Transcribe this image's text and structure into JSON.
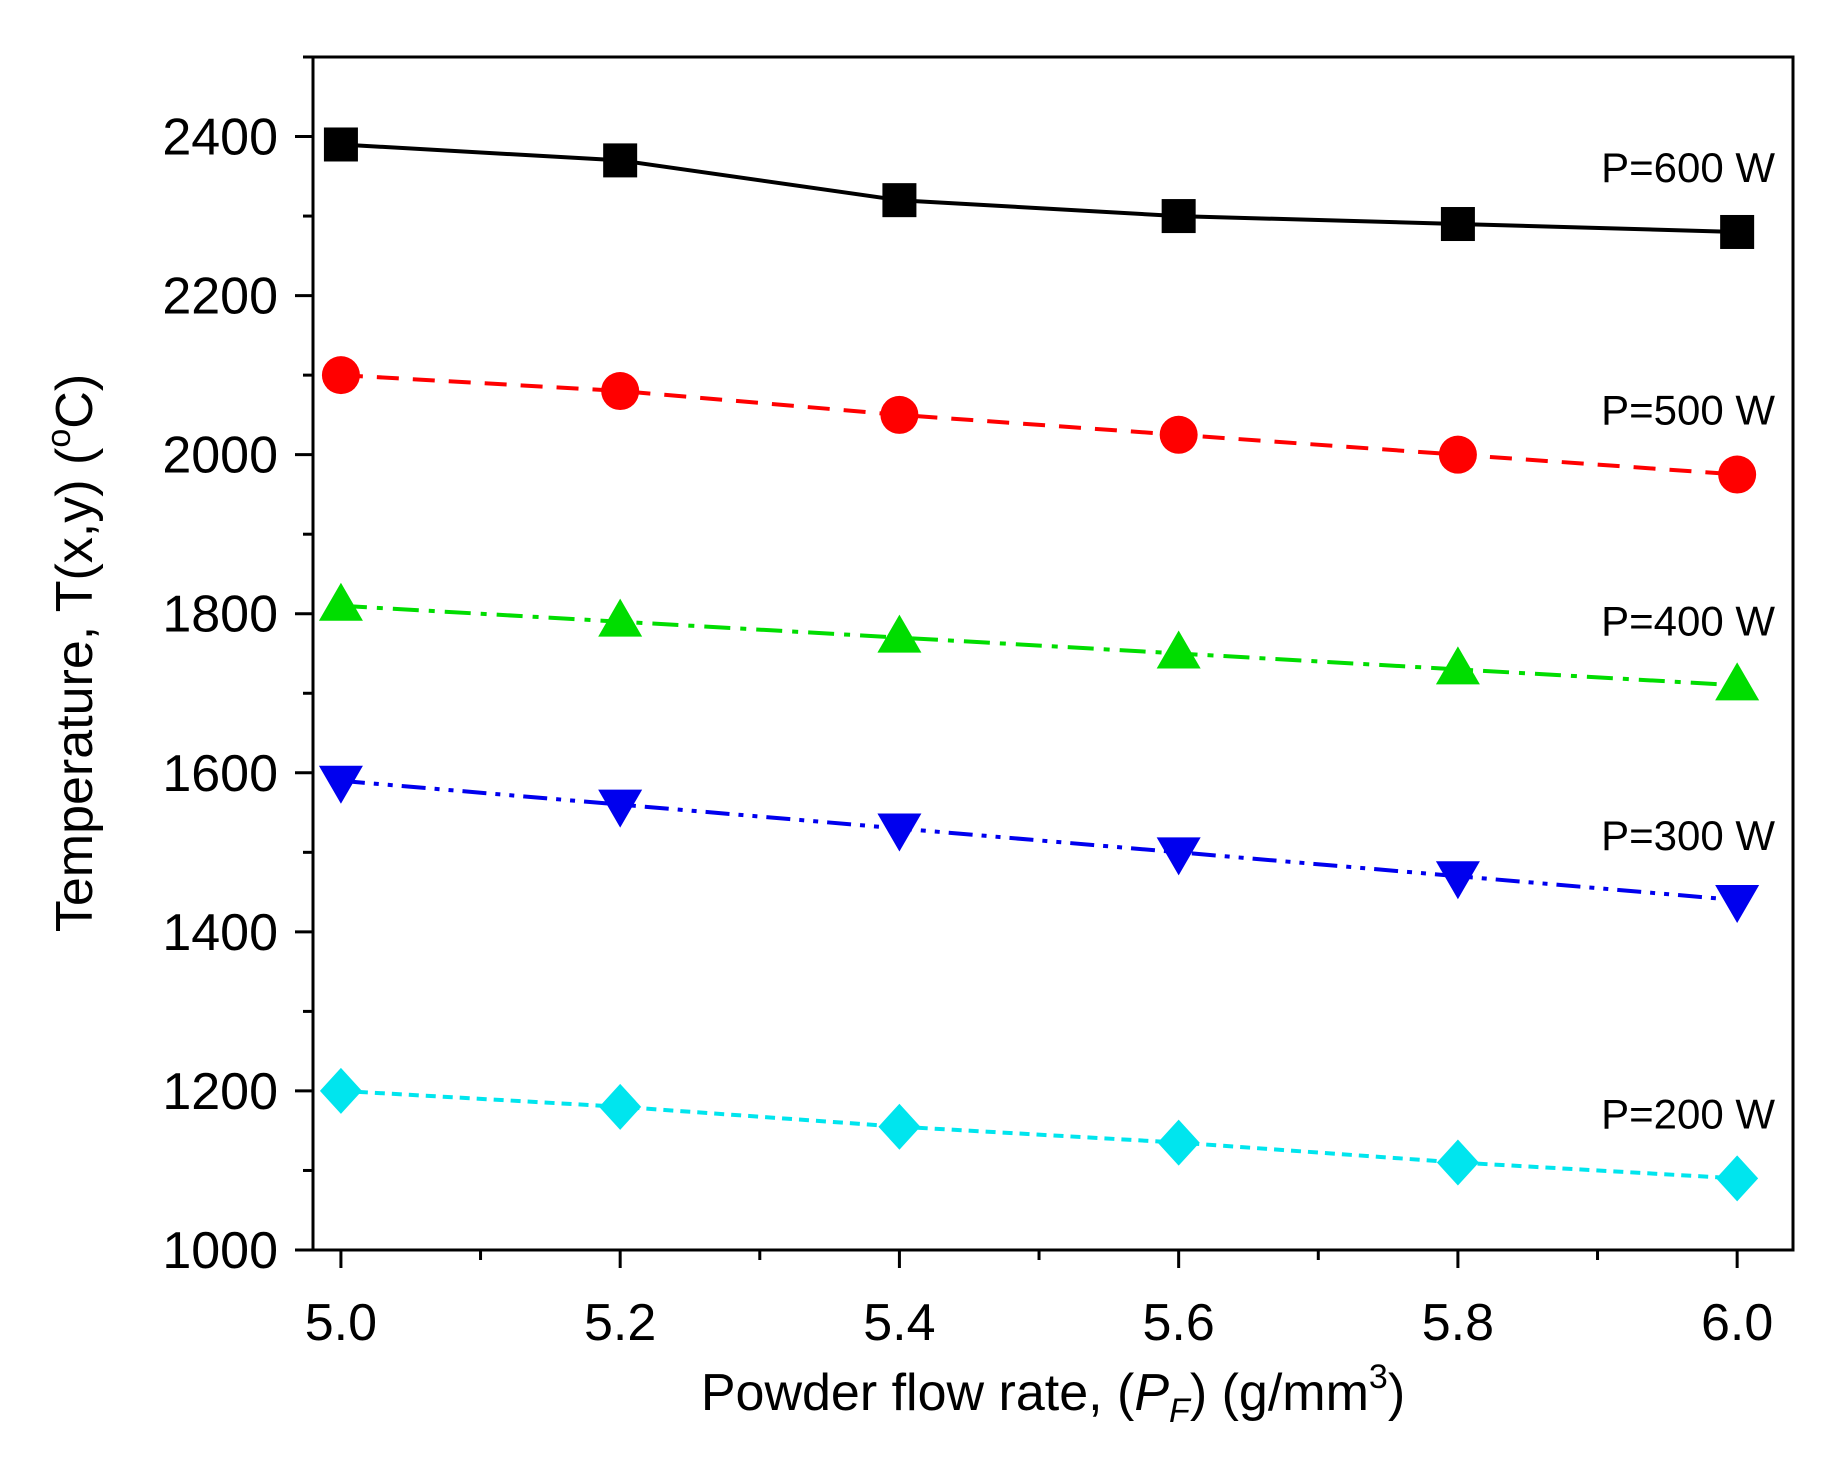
{
  "chart_data": {
    "type": "line",
    "title": "",
    "xlabel": "Powder flow rate, (P_F) (g/mm^3)",
    "xlabel_parts": {
      "pre": "Powder flow rate, (",
      "var": "P",
      "sub": "F",
      "mid": ") (g/mm",
      "sup": "3",
      "post": ")"
    },
    "ylabel": "Temperature, T(x,y) (°C)",
    "ylabel_parts": {
      "pre": "Temperature, T(x,y) (",
      "sup": "o",
      "post": "C)"
    },
    "xlim": [
      4.98,
      6.04
    ],
    "ylim": [
      1000,
      2500
    ],
    "x": [
      5.0,
      5.2,
      5.4,
      5.6,
      5.8,
      6.0
    ],
    "x_ticks": [
      "5.0",
      "5.2",
      "5.4",
      "5.6",
      "5.8",
      "6.0"
    ],
    "y_ticks": [
      "1000",
      "1200",
      "1400",
      "1600",
      "1800",
      "2000",
      "2200",
      "2400"
    ],
    "series": [
      {
        "name": "P=600 W",
        "color": "#000000",
        "marker": "square",
        "dash": "solid",
        "values": [
          2390,
          2370,
          2320,
          2300,
          2290,
          2280
        ]
      },
      {
        "name": "P=500 W",
        "color": "#ff0000",
        "marker": "circle",
        "dash": "dash",
        "values": [
          2100,
          2080,
          2050,
          2025,
          2000,
          1975
        ]
      },
      {
        "name": "P=400 W",
        "color": "#00dd00",
        "marker": "triangle-up",
        "dash": "dashdot",
        "values": [
          1810,
          1790,
          1770,
          1750,
          1730,
          1710
        ]
      },
      {
        "name": "P=300 W",
        "color": "#0000ee",
        "marker": "triangle-down",
        "dash": "dashdotdot",
        "values": [
          1590,
          1560,
          1530,
          1500,
          1470,
          1440
        ]
      },
      {
        "name": "P=200 W",
        "color": "#00e5ee",
        "marker": "diamond",
        "dash": "shortdash",
        "values": [
          1200,
          1180,
          1155,
          1135,
          1110,
          1090
        ]
      }
    ]
  }
}
